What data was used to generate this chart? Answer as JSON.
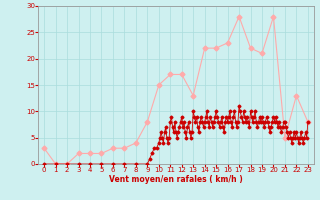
{
  "title": "",
  "xlabel": "Vent moyen/en rafales ( km/h )",
  "ylabel": "",
  "bg_color": "#cef0f0",
  "grid_color": "#aadddd",
  "xlim": [
    -0.5,
    23.5
  ],
  "ylim": [
    0,
    30
  ],
  "yticks": [
    0,
    5,
    10,
    15,
    20,
    25,
    30
  ],
  "xticks": [
    0,
    1,
    2,
    3,
    4,
    5,
    6,
    7,
    8,
    9,
    10,
    11,
    12,
    13,
    14,
    15,
    16,
    17,
    18,
    19,
    20,
    21,
    22,
    23
  ],
  "rafales_x": [
    0,
    1,
    2,
    3,
    4,
    5,
    6,
    7,
    8,
    9,
    10,
    11,
    12,
    13,
    14,
    15,
    16,
    17,
    18,
    19,
    20,
    21,
    22,
    23
  ],
  "rafales_y": [
    3,
    0,
    0,
    2,
    2,
    2,
    3,
    3,
    4,
    8,
    15,
    17,
    17,
    13,
    22,
    22,
    23,
    28,
    22,
    21,
    28,
    5,
    13,
    8
  ],
  "moyen_x": [
    0,
    1,
    2,
    3,
    4,
    5,
    6,
    7,
    8,
    9,
    9.2,
    9.4,
    9.6,
    9.8,
    10,
    10.1,
    10.2,
    10.3,
    10.4,
    10.5,
    10.6,
    10.7,
    10.8,
    10.9,
    11,
    11.1,
    11.2,
    11.3,
    11.4,
    11.5,
    11.6,
    11.7,
    11.8,
    11.9,
    12,
    12.1,
    12.2,
    12.3,
    12.4,
    12.5,
    12.6,
    12.7,
    12.8,
    12.9,
    13,
    13.1,
    13.2,
    13.3,
    13.4,
    13.5,
    13.6,
    13.7,
    13.8,
    13.9,
    14,
    14.1,
    14.2,
    14.3,
    14.4,
    14.5,
    14.6,
    14.7,
    14.8,
    14.9,
    15,
    15.1,
    15.2,
    15.3,
    15.4,
    15.5,
    15.6,
    15.7,
    15.8,
    15.9,
    16,
    16.1,
    16.2,
    16.3,
    16.4,
    16.5,
    16.6,
    16.7,
    16.8,
    16.9,
    17,
    17.1,
    17.2,
    17.3,
    17.4,
    17.5,
    17.6,
    17.7,
    17.8,
    17.9,
    18,
    18.1,
    18.2,
    18.3,
    18.4,
    18.5,
    18.6,
    18.7,
    18.8,
    18.9,
    19,
    19.1,
    19.2,
    19.3,
    19.4,
    19.5,
    19.6,
    19.7,
    19.8,
    19.9,
    20,
    20.1,
    20.2,
    20.3,
    20.4,
    20.5,
    20.6,
    20.7,
    20.8,
    20.9,
    21,
    21.1,
    21.2,
    21.3,
    21.4,
    21.5,
    21.6,
    21.7,
    21.8,
    21.9,
    22,
    22.1,
    22.2,
    22.3,
    22.4,
    22.5,
    22.6,
    22.7,
    22.8,
    22.9,
    23
  ],
  "moyen_y": [
    0,
    0,
    0,
    0,
    0,
    0,
    0,
    0,
    0,
    0,
    1,
    2,
    3,
    3,
    4,
    5,
    6,
    5,
    4,
    6,
    7,
    5,
    4,
    5,
    8,
    9,
    7,
    6,
    8,
    6,
    5,
    6,
    7,
    8,
    9,
    7,
    8,
    6,
    5,
    7,
    8,
    6,
    5,
    6,
    10,
    9,
    8,
    9,
    7,
    6,
    8,
    9,
    8,
    7,
    8,
    9,
    10,
    8,
    7,
    9,
    8,
    7,
    8,
    9,
    10,
    9,
    8,
    7,
    8,
    9,
    7,
    6,
    8,
    9,
    8,
    9,
    10,
    8,
    7,
    9,
    10,
    8,
    7,
    8,
    11,
    10,
    9,
    8,
    10,
    9,
    8,
    9,
    8,
    7,
    10,
    9,
    8,
    9,
    10,
    8,
    7,
    8,
    9,
    8,
    9,
    8,
    7,
    8,
    9,
    8,
    7,
    6,
    7,
    8,
    9,
    8,
    9,
    8,
    7,
    8,
    7,
    6,
    7,
    8,
    8,
    7,
    6,
    5,
    6,
    5,
    4,
    5,
    6,
    5,
    6,
    5,
    4,
    5,
    6,
    5,
    4,
    5,
    6,
    5,
    8
  ],
  "color_rafales": "#ffaaaa",
  "color_moyen": "#cc0000",
  "marker_size_rafales": 2.5,
  "marker_size_moyen": 1.5,
  "linewidth_rafales": 0.8,
  "linewidth_moyen": 0.6
}
